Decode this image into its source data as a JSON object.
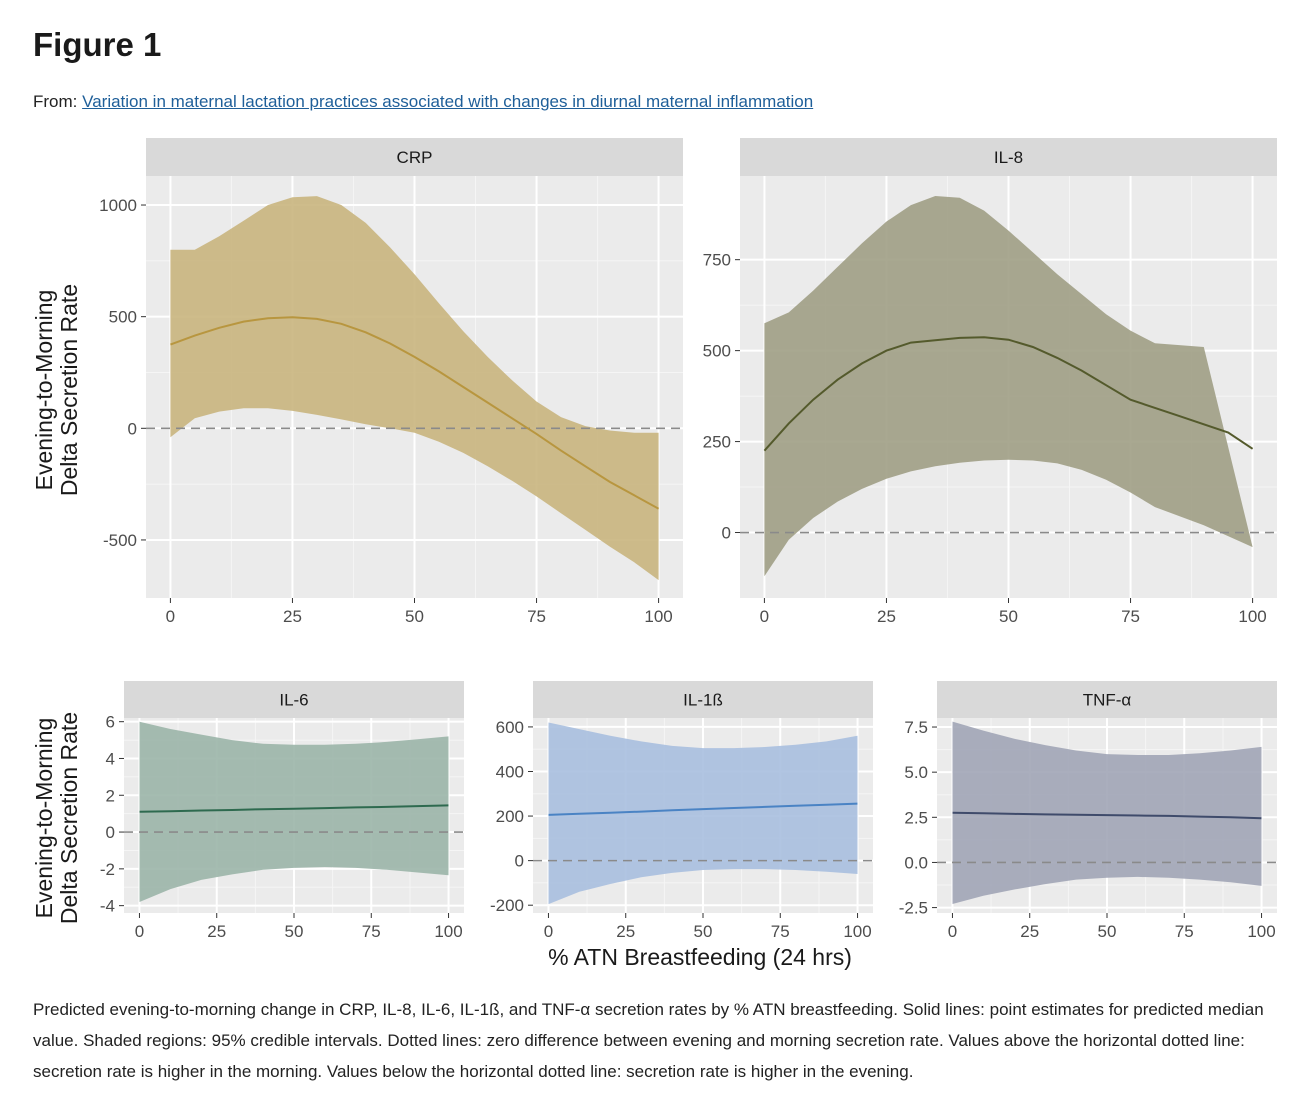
{
  "figure": {
    "title": "Figure 1",
    "from_label": "From:",
    "source_link": "Variation in maternal lactation practices associated with changes in diurnal maternal inflammation"
  },
  "y_axis_label_lines": [
    "Evening-to-Morning",
    "Delta Secretion Rate"
  ],
  "x_axis_label": "% ATN Breastfeeding (24 hrs)",
  "caption": "Predicted evening-to-morning change in CRP, IL-8, IL-6, IL-1ß, and TNF-α secretion rates by % ATN breastfeeding. Solid lines: point estimates for predicted median value. Shaded regions: 95% credible intervals. Dotted lines: zero difference between evening and morning secretion rate. Values above the horizontal dotted line: secretion rate is higher in the morning. Values below the horizontal dotted line: secretion rate is higher in the evening.",
  "chart_data": [
    {
      "type": "line",
      "title": "CRP",
      "fill_color": "#c9b57e",
      "line_color": "#b8963f",
      "x": [
        0,
        5,
        10,
        15,
        20,
        25,
        30,
        35,
        40,
        45,
        50,
        55,
        60,
        65,
        70,
        75,
        80,
        85,
        90,
        95,
        100
      ],
      "xticks": [
        0,
        25,
        50,
        75,
        100
      ],
      "xtick_labels": [
        "0",
        "25",
        "50",
        "75",
        "100"
      ],
      "yticks": [
        -500,
        0,
        500,
        1000
      ],
      "ytick_labels": [
        "-500",
        "0",
        "500",
        "1000"
      ],
      "xlim": [
        -5,
        105
      ],
      "ylim": [
        -760,
        1130
      ],
      "reference_y": 0,
      "series": [
        {
          "estimate": [
            375,
            415,
            450,
            478,
            493,
            497,
            490,
            468,
            430,
            380,
            320,
            255,
            185,
            115,
            45,
            -25,
            -100,
            -170,
            -240,
            -300,
            -360
          ],
          "lower": [
            -40,
            45,
            75,
            90,
            90,
            78,
            60,
            40,
            18,
            0,
            -20,
            -60,
            -110,
            -170,
            -235,
            -305,
            -380,
            -455,
            -530,
            -600,
            -680
          ],
          "upper": [
            800,
            800,
            860,
            930,
            1000,
            1035,
            1040,
            1000,
            920,
            810,
            690,
            560,
            435,
            320,
            215,
            120,
            50,
            10,
            -10,
            -20,
            -20
          ]
        }
      ]
    },
    {
      "type": "line",
      "title": "IL-8",
      "fill_color": "#a09e85",
      "line_color": "#545a2c",
      "x": [
        0,
        5,
        10,
        15,
        20,
        25,
        30,
        35,
        40,
        45,
        50,
        55,
        60,
        65,
        70,
        75,
        80,
        85,
        90,
        95,
        100
      ],
      "xticks": [
        0,
        25,
        50,
        75,
        100
      ],
      "xtick_labels": [
        "0",
        "25",
        "50",
        "75",
        "100"
      ],
      "yticks": [
        0,
        250,
        500,
        750
      ],
      "ytick_labels": [
        "0",
        "250",
        "500",
        "750"
      ],
      "xlim": [
        -5,
        105
      ],
      "ylim": [
        -180,
        980
      ],
      "reference_y": 0,
      "series": [
        {
          "estimate": [
            225,
            300,
            365,
            420,
            465,
            500,
            522,
            535,
            537,
            530,
            510,
            480,
            445,
            405,
            365,
            320,
            275,
            230
          ],
          "lower": [
            -120,
            -20,
            40,
            85,
            120,
            148,
            168,
            182,
            192,
            198,
            200,
            198,
            190,
            172,
            145,
            110,
            70,
            20,
            -40
          ],
          "upper": [
            575,
            605,
            665,
            730,
            795,
            855,
            900,
            925,
            920,
            885,
            830,
            770,
            710,
            655,
            600,
            555,
            520,
            510
          ],
          "estimate_x": [
            0,
            5,
            10,
            15,
            20,
            25,
            30,
            40,
            45,
            50,
            55,
            60,
            65,
            70,
            75,
            85,
            95,
            100
          ],
          "lower_x": [
            0,
            5,
            10,
            15,
            20,
            25,
            30,
            35,
            40,
            45,
            50,
            55,
            60,
            65,
            70,
            75,
            80,
            90,
            100
          ],
          "upper_x": [
            0,
            5,
            10,
            15,
            20,
            25,
            30,
            35,
            40,
            45,
            50,
            55,
            60,
            65,
            70,
            75,
            80,
            90
          ]
        }
      ]
    },
    {
      "type": "line",
      "title": "IL-6",
      "fill_color": "#9bb5a8",
      "line_color": "#2e6a4f",
      "x": [
        0,
        10,
        20,
        30,
        40,
        50,
        60,
        70,
        80,
        90,
        100
      ],
      "xticks": [
        0,
        25,
        50,
        75,
        100
      ],
      "xtick_labels": [
        "0",
        "25",
        "50",
        "75",
        "100"
      ],
      "yticks": [
        -4,
        -2,
        0,
        2,
        4,
        6
      ],
      "ytick_labels": [
        "-4",
        "-2",
        "0",
        "2",
        "4",
        "6"
      ],
      "xlim": [
        -5,
        105
      ],
      "ylim": [
        -4.4,
        6.2
      ],
      "reference_y": 0,
      "series": [
        {
          "estimate": [
            1.1,
            1.13,
            1.17,
            1.2,
            1.24,
            1.27,
            1.3,
            1.34,
            1.37,
            1.41,
            1.45
          ],
          "lower": [
            -3.8,
            -3.1,
            -2.6,
            -2.3,
            -2.05,
            -1.95,
            -1.9,
            -1.95,
            -2.05,
            -2.2,
            -2.35
          ],
          "upper": [
            6.0,
            5.6,
            5.3,
            5.0,
            4.8,
            4.75,
            4.75,
            4.8,
            4.9,
            5.05,
            5.2
          ]
        }
      ]
    },
    {
      "type": "line",
      "title": "IL-1ß",
      "fill_color": "#a8bfdf",
      "line_color": "#4a83c4",
      "x": [
        0,
        10,
        20,
        30,
        40,
        50,
        60,
        70,
        80,
        90,
        100
      ],
      "xticks": [
        0,
        25,
        50,
        75,
        100
      ],
      "xtick_labels": [
        "0",
        "25",
        "50",
        "75",
        "100"
      ],
      "yticks": [
        -200,
        0,
        200,
        400,
        600
      ],
      "ytick_labels": [
        "-200",
        "0",
        "200",
        "400",
        "600"
      ],
      "xlim": [
        -5,
        105
      ],
      "ylim": [
        -235,
        640
      ],
      "reference_y": 0,
      "series": [
        {
          "estimate": [
            205,
            210,
            215,
            220,
            226,
            231,
            236,
            241,
            246,
            251,
            256
          ],
          "lower": [
            -195,
            -140,
            -105,
            -75,
            -55,
            -42,
            -38,
            -38,
            -42,
            -50,
            -60
          ],
          "upper": [
            620,
            590,
            560,
            535,
            515,
            505,
            505,
            510,
            520,
            535,
            560
          ]
        }
      ]
    },
    {
      "type": "line",
      "title": "TNF-α",
      "fill_color": "#a1a5b6",
      "line_color": "#3f4b6b",
      "x": [
        0,
        10,
        20,
        30,
        40,
        50,
        60,
        70,
        80,
        90,
        100
      ],
      "xticks": [
        0,
        25,
        50,
        75,
        100
      ],
      "xtick_labels": [
        "0",
        "25",
        "50",
        "75",
        "100"
      ],
      "yticks": [
        -2.5,
        0,
        2.5,
        5,
        7.5
      ],
      "ytick_labels": [
        "-2.5",
        "0.0",
        "2.5",
        "5.0",
        "7.5"
      ],
      "xlim": [
        -5,
        105
      ],
      "ylim": [
        -2.8,
        8.0
      ],
      "reference_y": 0,
      "series": [
        {
          "estimate": [
            2.75,
            2.72,
            2.69,
            2.66,
            2.64,
            2.62,
            2.6,
            2.58,
            2.54,
            2.5,
            2.45
          ],
          "lower": [
            -2.3,
            -1.85,
            -1.5,
            -1.2,
            -0.95,
            -0.85,
            -0.8,
            -0.85,
            -0.95,
            -1.1,
            -1.3
          ],
          "upper": [
            7.8,
            7.3,
            6.85,
            6.5,
            6.2,
            6.0,
            5.95,
            5.95,
            6.05,
            6.2,
            6.4
          ]
        }
      ]
    }
  ]
}
